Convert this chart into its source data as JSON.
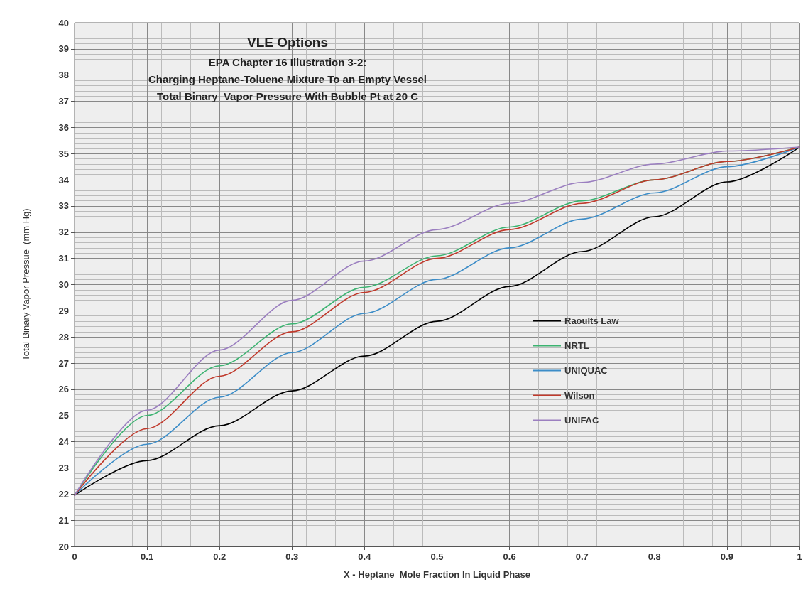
{
  "chart_data": {
    "type": "line",
    "title": "VLE Options",
    "subtitle": "EPA Chapter 16 Illustration 3-2:\nCharging Heptane-Toluene Mixture To an Empty Vessel\nTotal Binary  Vapor Pressure With Bubble Pt at 20 C",
    "xlabel": "X - Heptane  Mole Fraction In Liquid Phase",
    "ylabel": "Total Binary Vapor Pressue  (mm Hg)",
    "x": [
      0,
      0.1,
      0.2,
      0.3,
      0.4,
      0.5,
      0.6,
      0.7,
      0.8,
      0.9,
      1
    ],
    "series": [
      {
        "name": "Raoults Law",
        "color": "#000000",
        "values": [
          21.95,
          23.28,
          24.61,
          25.94,
          27.27,
          28.6,
          29.93,
          31.26,
          32.59,
          33.92,
          35.25
        ]
      },
      {
        "name": "NRTL",
        "color": "#3cb371",
        "values": [
          21.95,
          25.0,
          26.9,
          28.5,
          29.9,
          31.1,
          32.2,
          33.2,
          34.0,
          34.7,
          35.25
        ]
      },
      {
        "name": "UNIQUAC",
        "color": "#3c8dc8",
        "values": [
          21.95,
          23.9,
          25.7,
          27.4,
          28.9,
          30.2,
          31.4,
          32.5,
          33.5,
          34.5,
          35.25
        ]
      },
      {
        "name": "Wilson",
        "color": "#c0392b",
        "values": [
          21.95,
          24.5,
          26.5,
          28.2,
          29.7,
          31.0,
          32.1,
          33.1,
          34.0,
          34.7,
          35.25
        ]
      },
      {
        "name": "UNIFAC",
        "color": "#9b7fc0",
        "values": [
          21.95,
          25.2,
          27.5,
          29.4,
          30.9,
          32.1,
          33.1,
          33.9,
          34.6,
          35.1,
          35.25
        ]
      }
    ],
    "xlim": [
      0,
      1
    ],
    "xticks": [
      0,
      0.1,
      0.2,
      0.3,
      0.4,
      0.5,
      0.6,
      0.7,
      0.8,
      0.9,
      1
    ],
    "ylim": [
      20,
      40
    ],
    "yticks": [
      20,
      21,
      22,
      23,
      24,
      25,
      26,
      27,
      28,
      29,
      30,
      31,
      32,
      33,
      34,
      35,
      36,
      37,
      38,
      39,
      40
    ],
    "grid": true,
    "legend": "right",
    "marker": "none",
    "line_style": "solid"
  }
}
